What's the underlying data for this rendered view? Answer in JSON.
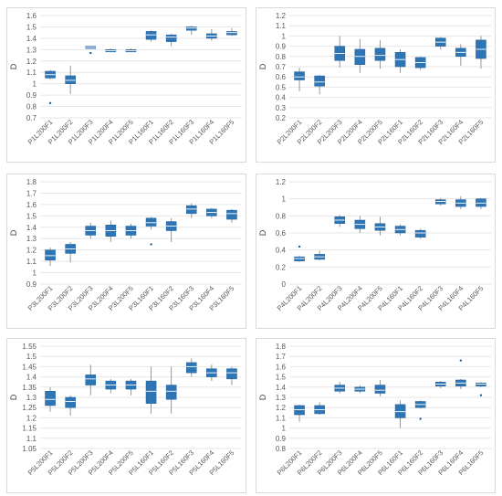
{
  "chart_data": [
    {
      "type": "boxplot",
      "ylabel": "D",
      "ylim": [
        0.7,
        1.6
      ],
      "ytick_step": 0.1,
      "categories": [
        "P1L200F1",
        "P1L200F2",
        "P1L200F3",
        "P1L200F4",
        "P1L200F5",
        "P1L160F1",
        "P1L160F2",
        "P1L160F3",
        "P1L160F4",
        "P1L160F5"
      ],
      "boxes": [
        {
          "min": 1.04,
          "q1": 1.05,
          "median": 1.08,
          "q3": 1.11,
          "max": 1.12,
          "outliers": [
            0.83
          ]
        },
        {
          "min": 0.91,
          "q1": 1.0,
          "median": 1.03,
          "q3": 1.07,
          "max": 1.16,
          "outliers": []
        },
        {
          "min": 1.31,
          "q1": 1.31,
          "median": 1.32,
          "q3": 1.33,
          "max": 1.33,
          "outliers": [
            1.27
          ]
        },
        {
          "min": 1.28,
          "q1": 1.28,
          "median": 1.29,
          "q3": 1.3,
          "max": 1.31,
          "outliers": []
        },
        {
          "min": 1.28,
          "q1": 1.28,
          "median": 1.29,
          "q3": 1.3,
          "max": 1.31,
          "outliers": []
        },
        {
          "min": 1.37,
          "q1": 1.39,
          "median": 1.43,
          "q3": 1.46,
          "max": 1.47,
          "outliers": []
        },
        {
          "min": 1.33,
          "q1": 1.37,
          "median": 1.41,
          "q3": 1.43,
          "max": 1.44,
          "outliers": []
        },
        {
          "min": 1.43,
          "q1": 1.47,
          "median": 1.49,
          "q3": 1.5,
          "max": 1.51,
          "outliers": []
        },
        {
          "min": 1.38,
          "q1": 1.4,
          "median": 1.42,
          "q3": 1.44,
          "max": 1.48,
          "outliers": []
        },
        {
          "min": 1.42,
          "q1": 1.43,
          "median": 1.45,
          "q3": 1.46,
          "max": 1.49,
          "outliers": []
        }
      ]
    },
    {
      "type": "boxplot",
      "ylabel": "D",
      "ylim": [
        0.2,
        1.2
      ],
      "ytick_step": 0.1,
      "categories": [
        "P2L200F1",
        "P2L200F2",
        "P2L200F3",
        "P2L200F4",
        "P2L200F5",
        "P2L160F1",
        "P2L160F2",
        "P2L160F3",
        "P2L160F4",
        "P2L160F5"
      ],
      "boxes": [
        {
          "min": 0.46,
          "q1": 0.57,
          "median": 0.6,
          "q3": 0.65,
          "max": 0.69,
          "outliers": []
        },
        {
          "min": 0.43,
          "q1": 0.51,
          "median": 0.55,
          "q3": 0.61,
          "max": 0.62,
          "outliers": []
        },
        {
          "min": 0.69,
          "q1": 0.76,
          "median": 0.83,
          "q3": 0.9,
          "max": 1.0,
          "outliers": []
        },
        {
          "min": 0.64,
          "q1": 0.72,
          "median": 0.8,
          "q3": 0.87,
          "max": 0.97,
          "outliers": []
        },
        {
          "min": 0.68,
          "q1": 0.76,
          "median": 0.81,
          "q3": 0.88,
          "max": 0.96,
          "outliers": []
        },
        {
          "min": 0.64,
          "q1": 0.7,
          "median": 0.77,
          "q3": 0.84,
          "max": 0.87,
          "outliers": []
        },
        {
          "min": 0.67,
          "q1": 0.69,
          "median": 0.74,
          "q3": 0.79,
          "max": 0.8,
          "outliers": []
        },
        {
          "min": 0.87,
          "q1": 0.9,
          "median": 0.94,
          "q3": 0.98,
          "max": 0.99,
          "outliers": []
        },
        {
          "min": 0.71,
          "q1": 0.8,
          "median": 0.84,
          "q3": 0.88,
          "max": 0.92,
          "outliers": []
        },
        {
          "min": 0.68,
          "q1": 0.78,
          "median": 0.87,
          "q3": 0.96,
          "max": 1.0,
          "outliers": []
        }
      ]
    },
    {
      "type": "boxplot",
      "ylabel": "D",
      "ylim": [
        0.9,
        1.8
      ],
      "ytick_step": 0.1,
      "categories": [
        "P3L200F1",
        "P3L200F2",
        "P3L200F3",
        "P3L200F4",
        "P3L200F5",
        "P3L160F1",
        "P3L160F2",
        "P3L160F3",
        "P3L160F4",
        "P3L160F5"
      ],
      "boxes": [
        {
          "min": 1.06,
          "q1": 1.11,
          "median": 1.15,
          "q3": 1.2,
          "max": 1.22,
          "outliers": []
        },
        {
          "min": 1.09,
          "q1": 1.17,
          "median": 1.21,
          "q3": 1.25,
          "max": 1.27,
          "outliers": []
        },
        {
          "min": 1.3,
          "q1": 1.33,
          "median": 1.37,
          "q3": 1.41,
          "max": 1.44,
          "outliers": []
        },
        {
          "min": 1.27,
          "q1": 1.32,
          "median": 1.37,
          "q3": 1.42,
          "max": 1.46,
          "outliers": []
        },
        {
          "min": 1.3,
          "q1": 1.33,
          "median": 1.37,
          "q3": 1.41,
          "max": 1.43,
          "outliers": []
        },
        {
          "min": 1.38,
          "q1": 1.41,
          "median": 1.44,
          "q3": 1.48,
          "max": 1.49,
          "outliers": [
            1.25
          ]
        },
        {
          "min": 1.27,
          "q1": 1.37,
          "median": 1.41,
          "q3": 1.45,
          "max": 1.48,
          "outliers": []
        },
        {
          "min": 1.48,
          "q1": 1.52,
          "median": 1.56,
          "q3": 1.59,
          "max": 1.61,
          "outliers": []
        },
        {
          "min": 1.48,
          "q1": 1.5,
          "median": 1.53,
          "q3": 1.56,
          "max": 1.57,
          "outliers": []
        },
        {
          "min": 1.44,
          "q1": 1.47,
          "median": 1.52,
          "q3": 1.55,
          "max": 1.56,
          "outliers": []
        }
      ]
    },
    {
      "type": "boxplot",
      "ylabel": "D",
      "ylim": [
        0.0,
        1.2
      ],
      "ytick_step": 0.2,
      "categories": [
        "P4L200F1",
        "P4L200F2",
        "P4L200F3",
        "P4L200F4",
        "P4L200F5",
        "P4L160F1",
        "P4L160F2",
        "P4L160F3",
        "P4L160F4",
        "P4L160F5"
      ],
      "boxes": [
        {
          "min": 0.26,
          "q1": 0.27,
          "median": 0.3,
          "q3": 0.32,
          "max": 0.33,
          "outliers": [
            0.44
          ]
        },
        {
          "min": 0.28,
          "q1": 0.29,
          "median": 0.32,
          "q3": 0.35,
          "max": 0.39,
          "outliers": []
        },
        {
          "min": 0.67,
          "q1": 0.71,
          "median": 0.75,
          "q3": 0.79,
          "max": 0.81,
          "outliers": []
        },
        {
          "min": 0.6,
          "q1": 0.65,
          "median": 0.7,
          "q3": 0.75,
          "max": 0.8,
          "outliers": []
        },
        {
          "min": 0.57,
          "q1": 0.63,
          "median": 0.67,
          "q3": 0.71,
          "max": 0.79,
          "outliers": []
        },
        {
          "min": 0.57,
          "q1": 0.6,
          "median": 0.64,
          "q3": 0.68,
          "max": 0.7,
          "outliers": []
        },
        {
          "min": 0.53,
          "q1": 0.55,
          "median": 0.6,
          "q3": 0.63,
          "max": 0.65,
          "outliers": []
        },
        {
          "min": 0.92,
          "q1": 0.94,
          "median": 0.97,
          "q3": 0.99,
          "max": 1.01,
          "outliers": []
        },
        {
          "min": 0.88,
          "q1": 0.91,
          "median": 0.95,
          "q3": 0.99,
          "max": 1.03,
          "outliers": []
        },
        {
          "min": 0.88,
          "q1": 0.91,
          "median": 0.95,
          "q3": 1.0,
          "max": 1.01,
          "outliers": []
        }
      ]
    },
    {
      "type": "boxplot",
      "ylabel": "D",
      "ylim": [
        1.05,
        1.55
      ],
      "ytick_step": 0.05,
      "categories": [
        "P5L200F1",
        "P5L200F2",
        "P5L200F3",
        "P5L200F4",
        "P5L200F5",
        "P5L160F1",
        "P5L160F2",
        "P5L160F3",
        "P5L160F4",
        "P5L160F5"
      ],
      "boxes": [
        {
          "min": 1.23,
          "q1": 1.26,
          "median": 1.29,
          "q3": 1.33,
          "max": 1.35,
          "outliers": []
        },
        {
          "min": 1.21,
          "q1": 1.25,
          "median": 1.28,
          "q3": 1.3,
          "max": 1.31,
          "outliers": []
        },
        {
          "min": 1.31,
          "q1": 1.36,
          "median": 1.39,
          "q3": 1.41,
          "max": 1.46,
          "outliers": []
        },
        {
          "min": 1.32,
          "q1": 1.34,
          "median": 1.36,
          "q3": 1.38,
          "max": 1.39,
          "outliers": []
        },
        {
          "min": 1.31,
          "q1": 1.34,
          "median": 1.36,
          "q3": 1.38,
          "max": 1.39,
          "outliers": []
        },
        {
          "min": 1.22,
          "q1": 1.27,
          "median": 1.33,
          "q3": 1.38,
          "max": 1.45,
          "outliers": []
        },
        {
          "min": 1.22,
          "q1": 1.29,
          "median": 1.33,
          "q3": 1.36,
          "max": 1.45,
          "outliers": []
        },
        {
          "min": 1.4,
          "q1": 1.42,
          "median": 1.45,
          "q3": 1.47,
          "max": 1.49,
          "outliers": []
        },
        {
          "min": 1.38,
          "q1": 1.4,
          "median": 1.42,
          "q3": 1.44,
          "max": 1.46,
          "outliers": []
        },
        {
          "min": 1.36,
          "q1": 1.39,
          "median": 1.42,
          "q3": 1.44,
          "max": 1.45,
          "outliers": []
        }
      ]
    },
    {
      "type": "boxplot",
      "ylabel": "D",
      "ylim": [
        0.8,
        1.8
      ],
      "ytick_step": 0.1,
      "categories": [
        "P6L200F1",
        "P6L200F2",
        "P6L200F3",
        "P6L200F4",
        "P6L200F5",
        "P6L160F1",
        "P6L160F2",
        "P6L160F3",
        "P6L160F4",
        "P6L160F5"
      ],
      "boxes": [
        {
          "min": 1.06,
          "q1": 1.13,
          "median": 1.18,
          "q3": 1.22,
          "max": 1.23,
          "outliers": []
        },
        {
          "min": 1.13,
          "q1": 1.14,
          "median": 1.18,
          "q3": 1.22,
          "max": 1.25,
          "outliers": []
        },
        {
          "min": 1.34,
          "q1": 1.36,
          "median": 1.39,
          "q3": 1.42,
          "max": 1.45,
          "outliers": []
        },
        {
          "min": 1.34,
          "q1": 1.36,
          "median": 1.38,
          "q3": 1.4,
          "max": 1.42,
          "outliers": []
        },
        {
          "min": 1.31,
          "q1": 1.34,
          "median": 1.37,
          "q3": 1.42,
          "max": 1.47,
          "outliers": []
        },
        {
          "min": 1.0,
          "q1": 1.1,
          "median": 1.16,
          "q3": 1.23,
          "max": 1.27,
          "outliers": []
        },
        {
          "min": 1.19,
          "q1": 1.2,
          "median": 1.23,
          "q3": 1.26,
          "max": 1.27,
          "outliers": [
            1.09
          ]
        },
        {
          "min": 1.39,
          "q1": 1.41,
          "median": 1.43,
          "q3": 1.45,
          "max": 1.46,
          "outliers": []
        },
        {
          "min": 1.38,
          "q1": 1.41,
          "median": 1.44,
          "q3": 1.47,
          "max": 1.48,
          "outliers": [
            1.66
          ]
        },
        {
          "min": 1.4,
          "q1": 1.41,
          "median": 1.43,
          "q3": 1.44,
          "max": 1.45,
          "outliers": [
            1.32
          ]
        }
      ]
    }
  ]
}
